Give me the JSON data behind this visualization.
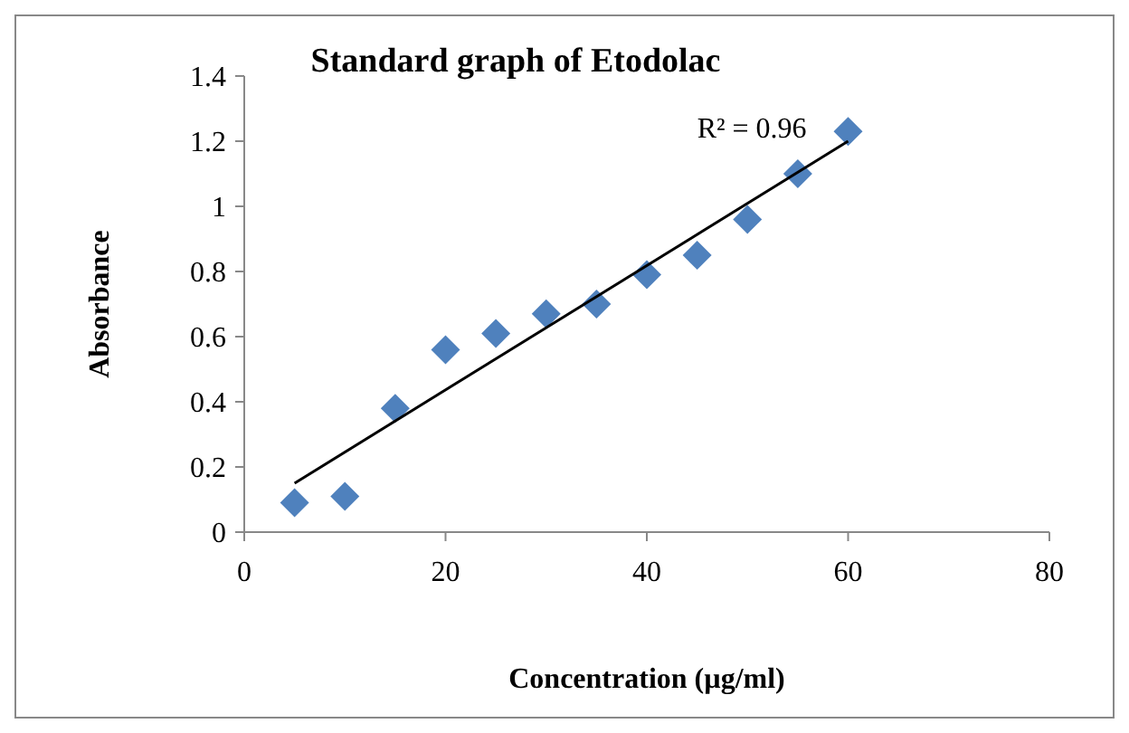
{
  "chart_data": {
    "type": "scatter",
    "title": "Standard graph of Etodolac",
    "xlabel": "Concentration (µg/ml)",
    "ylabel": "Absorbance",
    "x": [
      5,
      10,
      15,
      20,
      25,
      30,
      35,
      40,
      45,
      50,
      55,
      60
    ],
    "series": [
      {
        "color": "#4f81bd",
        "marker": "diamond",
        "values": [
          0.09,
          0.11,
          0.38,
          0.56,
          0.61,
          0.67,
          0.7,
          0.79,
          0.85,
          0.96,
          1.1,
          1.23
        ]
      },
      {
        "type": "line",
        "color": "#000000",
        "x": [
          5,
          60
        ],
        "values": [
          0.15,
          1.2
        ]
      }
    ],
    "annotations": [
      "R² = 0.96"
    ],
    "xlim": [
      0,
      80
    ],
    "xticks": [
      0,
      20,
      40,
      60,
      80
    ],
    "ylim": [
      0,
      1.4
    ],
    "yticks": [
      0,
      0.2,
      0.4,
      0.6,
      0.8,
      1,
      1.2,
      1.4
    ],
    "grid": false
  }
}
